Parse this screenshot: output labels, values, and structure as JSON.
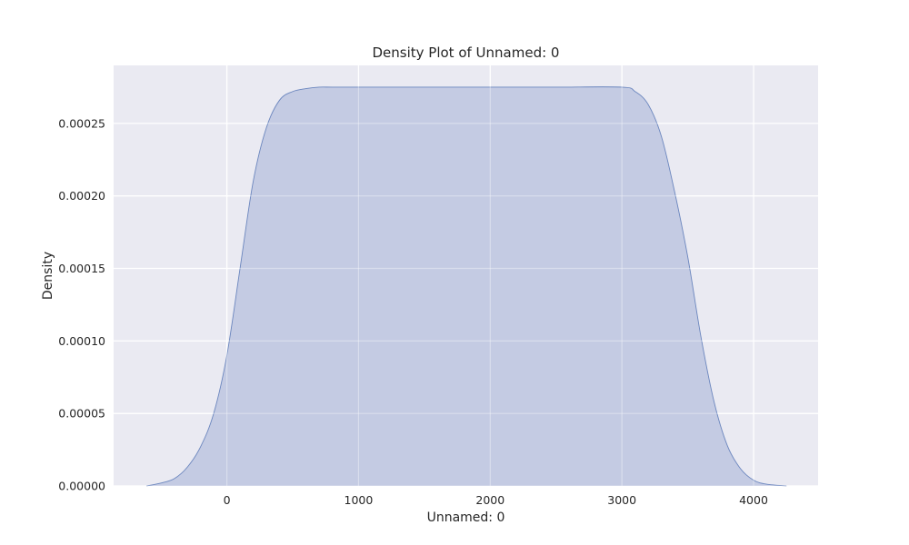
{
  "chart_data": {
    "type": "area",
    "title": "Density Plot of Unnamed: 0",
    "xlabel": "Unnamed: 0",
    "ylabel": "Density",
    "xlim": [
      -860,
      4490
    ],
    "ylim": [
      0,
      0.00029
    ],
    "xticks": [
      0,
      1000,
      2000,
      3000,
      4000
    ],
    "xtick_labels": [
      "0",
      "1000",
      "2000",
      "3000",
      "4000"
    ],
    "yticks": [
      0,
      5e-05,
      0.0001,
      0.00015,
      0.0002,
      0.00025
    ],
    "ytick_labels": [
      "0.00000",
      "0.00005",
      "0.00010",
      "0.00015",
      "0.00020",
      "0.00025"
    ],
    "grid": true,
    "background_color": "#eaeaf2",
    "series": [
      {
        "fill_color": "#c2c9e1",
        "line_color": "#6b86be",
        "x": [
          -610,
          -500,
          -400,
          -300,
          -200,
          -100,
          0,
          100,
          200,
          300,
          400,
          500,
          600,
          700,
          800,
          1000,
          1500,
          2000,
          2500,
          3000,
          3100,
          3200,
          3300,
          3400,
          3500,
          3600,
          3700,
          3800,
          3900,
          4000,
          4100,
          4250
        ],
        "y": [
          0.0,
          2e-06,
          5e-06,
          1.3e-05,
          2.7e-05,
          5e-05,
          9e-05,
          0.00015,
          0.00021,
          0.000247,
          0.000266,
          0.000272,
          0.000274,
          0.000275,
          0.000275,
          0.000275,
          0.000275,
          0.000275,
          0.000275,
          0.000275,
          0.000272,
          0.000263,
          0.000241,
          0.000203,
          0.000158,
          0.000103,
          5.8e-05,
          2.8e-05,
          1.2e-05,
          4e-06,
          1.2e-06,
          0.0
        ]
      }
    ]
  }
}
